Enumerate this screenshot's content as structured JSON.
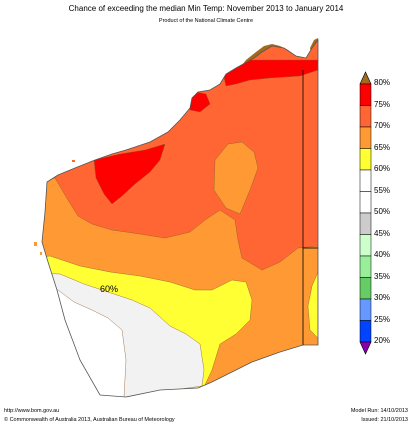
{
  "header": {
    "title": "Chance of exceeding the median Min Temp: November 2013 to January 2014",
    "subtitle": "Product of the National Climate Centre"
  },
  "map": {
    "region_label": "60%",
    "colors": {
      "ocean": "#ffffff",
      "land_outline": "#555555",
      "neighbour_land": "#a36a1c",
      "red": "#ff0000",
      "orange_dark": "#ff6633",
      "orange": "#ff9933",
      "yellow": "#ffff33",
      "light_grey": "#f2f2f2",
      "white": "#ffffff"
    }
  },
  "legend": {
    "items": [
      {
        "label": "80%",
        "color": "#a36a1c"
      },
      {
        "label": "75%",
        "color": "#ff0000"
      },
      {
        "label": "70%",
        "color": "#ff6633"
      },
      {
        "label": "65%",
        "color": "#ff9933"
      },
      {
        "label": "60%",
        "color": "#ffff33"
      },
      {
        "label": "55%",
        "color": "#ffffff"
      },
      {
        "label": "50%",
        "color": "#ffffff"
      },
      {
        "label": "45%",
        "color": "#cccccc"
      },
      {
        "label": "40%",
        "color": "#ccffcc"
      },
      {
        "label": "35%",
        "color": "#99ee99"
      },
      {
        "label": "30%",
        "color": "#66cc66"
      },
      {
        "label": "25%",
        "color": "#6699ff"
      },
      {
        "label": "20%",
        "color": "#0044ff"
      }
    ],
    "bottom_cap_color": "#8800aa"
  },
  "footer": {
    "url": "http://www.bom.gov.au",
    "copyright": "©  Commonwealth of Australia 2013, Australian Bureau of Meteorology",
    "model_run": "Model Run: 14/10/2013",
    "issued": "Issued: 21/10/2013"
  }
}
